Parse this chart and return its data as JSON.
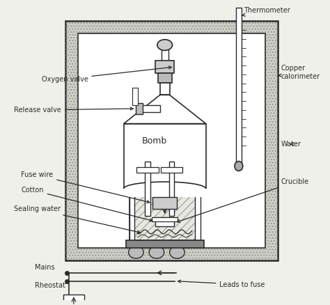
{
  "bg_color": "#f0f0ea",
  "jacket_fill": "#c8c8c0",
  "inner_fill": "#ffffff",
  "hatch_outer": ".....",
  "line_color": "#2a2a2a",
  "labels": {
    "thermometer": "Thermometer",
    "copper_calorimeter": "Copper\ncalorimeter",
    "oxygen_valve": "Oxygen valve",
    "release_valve": "Release valve",
    "bomb": "Bomb",
    "water": "Water",
    "fuse_wire": "Fuse wire",
    "cotton": "Cotton",
    "crucible": "Crucible",
    "sealing_water": "Sealing water",
    "mains": "Mains",
    "rheostat": "Rheostat",
    "leads_to_fuse": "Leads to fuse"
  },
  "figsize": [
    4.74,
    4.38
  ],
  "dpi": 100
}
